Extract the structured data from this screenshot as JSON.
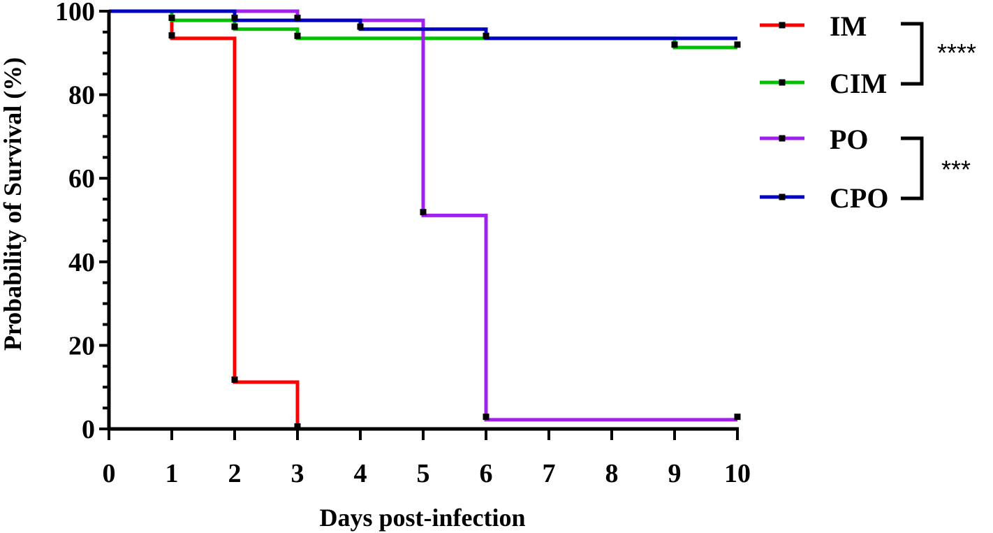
{
  "chart_data": {
    "type": "line",
    "step": true,
    "xlabel": "Days post-infection",
    "ylabel": "Probability of Survival (%)",
    "ylim": [
      0,
      100
    ],
    "yticks": [
      0,
      20,
      40,
      60,
      80,
      100
    ],
    "xticks": [
      0,
      1,
      2,
      3,
      4,
      5,
      6,
      7,
      8,
      9,
      10
    ],
    "grid": false,
    "legend_position": "right",
    "series": [
      {
        "name": "IM",
        "color": "#ff0000",
        "points": [
          [
            0,
            100
          ],
          [
            1,
            93.5
          ],
          [
            2,
            11.2
          ],
          [
            3,
            0
          ]
        ],
        "censor": [
          [
            1,
            94.2
          ],
          [
            2,
            11.8
          ],
          [
            3,
            0.6
          ]
        ]
      },
      {
        "name": "CIM",
        "color": "#00c000",
        "points": [
          [
            0,
            100
          ],
          [
            1,
            97.8
          ],
          [
            2,
            95.7
          ],
          [
            3,
            93.5
          ],
          [
            9,
            91.3
          ],
          [
            10,
            91.3
          ]
        ],
        "censor": [
          [
            1,
            98.4
          ],
          [
            2,
            96.3
          ],
          [
            3,
            94.1
          ],
          [
            9,
            92.0
          ]
        ]
      },
      {
        "name": "PO",
        "color": "#a020f0",
        "points": [
          [
            0,
            100
          ],
          [
            3,
            97.8
          ],
          [
            5,
            51.1
          ],
          [
            6,
            2.2
          ],
          [
            10,
            2.2
          ]
        ],
        "censor": [
          [
            3,
            98.4
          ],
          [
            5,
            51.9
          ],
          [
            6,
            2.9
          ],
          [
            10,
            2.9
          ]
        ]
      },
      {
        "name": "CPO",
        "color": "#0000c0",
        "points": [
          [
            0,
            100
          ],
          [
            2,
            97.8
          ],
          [
            4,
            95.7
          ],
          [
            6,
            93.5
          ],
          [
            9,
            93.5
          ],
          [
            10,
            93.5
          ]
        ],
        "censor": [
          [
            2,
            98.4
          ],
          [
            4,
            96.3
          ],
          [
            6,
            94.1
          ],
          [
            10,
            92.0
          ]
        ]
      }
    ],
    "significance": [
      {
        "groups": [
          "IM",
          "CIM"
        ],
        "label": "****"
      },
      {
        "groups": [
          "PO",
          "CPO"
        ],
        "label": "***"
      }
    ]
  }
}
